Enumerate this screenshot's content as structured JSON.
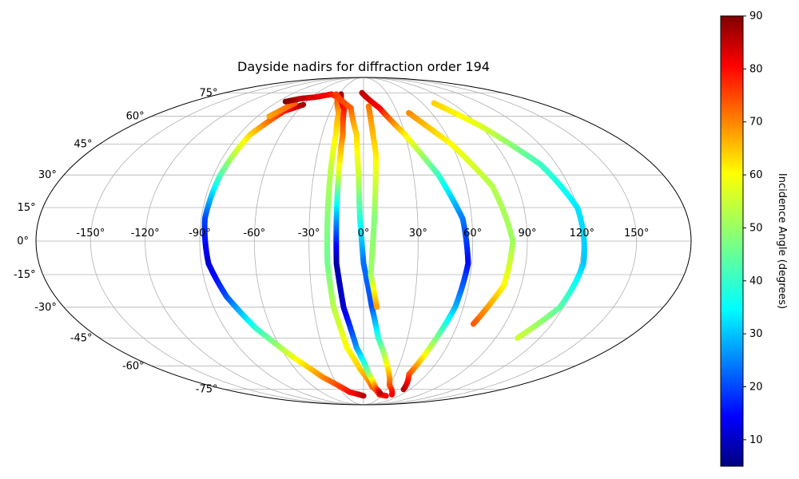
{
  "chart_data": {
    "type": "scatter",
    "projection": "mollweide",
    "title": "Dayside nadirs for diffraction order 194",
    "grid": true,
    "x_ticks": [
      "-150°",
      "-120°",
      "-90°",
      "-60°",
      "-30°",
      "0°",
      "30°",
      "60°",
      "90°",
      "120°",
      "150°"
    ],
    "x_tick_values": [
      -150,
      -120,
      -90,
      -60,
      -30,
      0,
      30,
      60,
      90,
      120,
      150
    ],
    "y_ticks": [
      "-75°",
      "-60°",
      "-45°",
      "-30°",
      "-15°",
      "0°",
      "15°",
      "30°",
      "45°",
      "60°",
      "75°"
    ],
    "y_tick_values": [
      -75,
      -60,
      -45,
      -30,
      -15,
      0,
      15,
      30,
      45,
      60,
      75
    ],
    "colorbar": {
      "label": "Incidence Angle (degrees)",
      "colormap": "jet",
      "range": [
        5,
        90
      ],
      "ticks": [
        "10",
        "20",
        "30",
        "40",
        "50",
        "60",
        "70",
        "80",
        "90"
      ],
      "tick_values": [
        10,
        20,
        30,
        40,
        50,
        60,
        70,
        80,
        90
      ]
    },
    "tracks": [
      {
        "points": [
          [
            -60,
            67,
            88
          ],
          [
            -72,
            63,
            78
          ],
          [
            -82,
            50,
            62
          ],
          [
            -86,
            30,
            44
          ],
          [
            -88,
            10,
            22
          ],
          [
            -86,
            -10,
            12
          ],
          [
            -80,
            -25,
            22
          ],
          [
            -70,
            -40,
            40
          ],
          [
            -55,
            -55,
            56
          ],
          [
            -40,
            -67,
            68
          ],
          [
            -20,
            -77,
            78
          ],
          [
            0,
            -80,
            85
          ]
        ]
      },
      {
        "points": [
          [
            -70,
            68,
            72
          ],
          [
            -80,
            60,
            66
          ]
        ]
      },
      {
        "points": [
          [
            -82,
            69,
            90
          ],
          [
            -70,
            71,
            85
          ],
          [
            -55,
            72,
            82
          ],
          [
            -40,
            74,
            78
          ],
          [
            -30,
            72,
            75
          ],
          [
            -22,
            62,
            66
          ],
          [
            -20,
            50,
            60
          ],
          [
            -20,
            30,
            52
          ],
          [
            -20,
            10,
            48
          ],
          [
            -20,
            -10,
            46
          ],
          [
            -18,
            -30,
            52
          ],
          [
            -12,
            -50,
            58
          ],
          [
            -3,
            -62,
            62
          ],
          [
            10,
            -73,
            70
          ],
          [
            25,
            -79,
            76
          ],
          [
            38,
            -80,
            80
          ]
        ]
      },
      {
        "points": [
          [
            -28,
            74,
            88
          ],
          [
            -18,
            64,
            78
          ],
          [
            -15,
            50,
            70
          ],
          [
            -15,
            30,
            55
          ],
          [
            -15,
            10,
            30
          ],
          [
            -15,
            -10,
            8
          ],
          [
            -12,
            -30,
            12
          ],
          [
            -5,
            -50,
            28
          ],
          [
            5,
            -65,
            48
          ],
          [
            15,
            -74,
            70
          ],
          [
            25,
            -78,
            85
          ]
        ]
      },
      {
        "points": [
          [
            -34,
            74,
            75
          ],
          [
            -12,
            65,
            72
          ],
          [
            -5,
            50,
            62
          ],
          [
            -3,
            30,
            54
          ],
          [
            -2,
            10,
            40
          ],
          [
            0,
            -10,
            25
          ],
          [
            5,
            -30,
            22
          ],
          [
            10,
            -45,
            40
          ],
          [
            20,
            -60,
            58
          ],
          [
            30,
            -72,
            72
          ],
          [
            45,
            -79,
            80
          ]
        ]
      },
      {
        "points": [
          [
            -2,
            75,
            85
          ],
          [
            15,
            65,
            80
          ],
          [
            30,
            50,
            60
          ],
          [
            45,
            30,
            42
          ],
          [
            55,
            10,
            26
          ],
          [
            58,
            -10,
            16
          ],
          [
            55,
            -30,
            30
          ],
          [
            48,
            -50,
            52
          ],
          [
            43,
            -65,
            72
          ],
          [
            52,
            -75,
            85
          ]
        ]
      },
      {
        "points": [
          [
            5,
            66,
            70
          ],
          [
            8,
            40,
            60
          ],
          [
            6,
            10,
            48
          ],
          [
            4,
            -15,
            50
          ],
          [
            8,
            -30,
            66
          ]
        ]
      },
      {
        "points": [
          [
            40,
            62,
            68
          ],
          [
            60,
            45,
            58
          ],
          [
            75,
            25,
            52
          ],
          [
            82,
            0,
            50
          ],
          [
            80,
            -20,
            58
          ],
          [
            70,
            -38,
            72
          ]
        ]
      },
      {
        "points": [
          [
            72,
            68,
            62
          ],
          [
            90,
            55,
            56
          ],
          [
            110,
            35,
            42
          ],
          [
            120,
            15,
            35
          ],
          [
            122,
            -10,
            32
          ],
          [
            118,
            -30,
            44
          ],
          [
            105,
            -45,
            54
          ]
        ]
      }
    ]
  }
}
